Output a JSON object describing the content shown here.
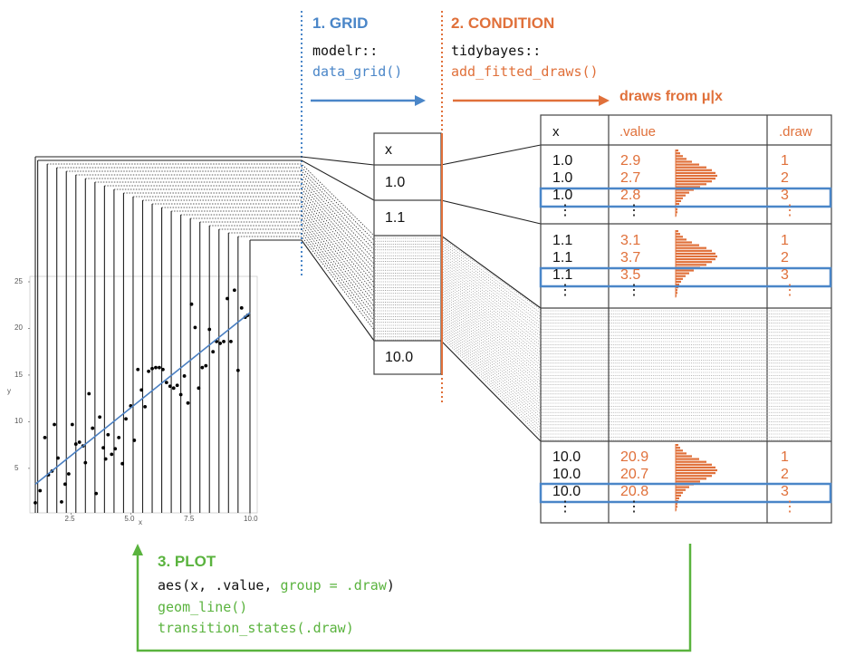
{
  "colors": {
    "grid_blue": "#4a86c8",
    "condition_orange": "#e0703a",
    "plot_green": "#5ab33e",
    "text_black": "#111111",
    "line_gray": "#444444"
  },
  "step1": {
    "title": "1. GRID",
    "pkg": "modelr::",
    "func": "data_grid()"
  },
  "step2": {
    "title": "2. CONDITION",
    "pkg": "tidybayes::",
    "func": "add_fitted_draws()",
    "note": "draws from μ|x"
  },
  "step3": {
    "title": "3. PLOT",
    "aes_prefix": "aes(x, .value, ",
    "aes_group": "group = .draw",
    "aes_suffix": ")",
    "line2": "geom_line()",
    "line3": "transition_states(.draw)"
  },
  "grid_table": {
    "header": "x",
    "values": [
      "1.0",
      "1.1",
      "10.0"
    ]
  },
  "draws_table": {
    "headers": {
      "x": "x",
      "value": ".value",
      "draw": ".draw"
    },
    "ellipsis": "⋮",
    "groups": [
      {
        "x": [
          "1.0",
          "1.0",
          "1.0"
        ],
        "value": [
          "2.9",
          "2.7",
          "2.8"
        ],
        "draw": [
          "1",
          "2",
          "3"
        ]
      },
      {
        "x": [
          "1.1",
          "1.1",
          "1.1"
        ],
        "value": [
          "3.1",
          "3.7",
          "3.5"
        ],
        "draw": [
          "1",
          "2",
          "3"
        ]
      },
      {
        "x": [
          "10.0",
          "10.0",
          "10.0"
        ],
        "value": [
          "20.9",
          "20.7",
          "20.8"
        ],
        "draw": [
          "1",
          "2",
          "3"
        ]
      }
    ]
  },
  "chart_data": {
    "type": "scatter",
    "title": "",
    "xlabel": "x",
    "ylabel": "y",
    "xlim": [
      1,
      10
    ],
    "ylim": [
      1,
      25
    ],
    "x_ticks": [
      "2.5",
      "5.0",
      "7.5",
      "10.0"
    ],
    "y_ticks": [
      "5",
      "10",
      "15",
      "20",
      "25"
    ],
    "points": [
      [
        1.0,
        1.3
      ],
      [
        1.2,
        2.6
      ],
      [
        1.4,
        8.3
      ],
      [
        1.55,
        4.3
      ],
      [
        1.7,
        4.7
      ],
      [
        1.8,
        9.7
      ],
      [
        1.95,
        6.1
      ],
      [
        2.1,
        1.4
      ],
      [
        2.25,
        3.3
      ],
      [
        2.4,
        4.4
      ],
      [
        2.55,
        9.7
      ],
      [
        2.7,
        7.6
      ],
      [
        2.85,
        7.8
      ],
      [
        3.0,
        7.4
      ],
      [
        3.1,
        5.6
      ],
      [
        3.25,
        13.0
      ],
      [
        3.4,
        9.3
      ],
      [
        3.55,
        2.3
      ],
      [
        3.7,
        10.5
      ],
      [
        3.85,
        7.2
      ],
      [
        3.95,
        6.0
      ],
      [
        4.05,
        8.6
      ],
      [
        4.2,
        6.5
      ],
      [
        4.35,
        7.1
      ],
      [
        4.5,
        8.3
      ],
      [
        4.65,
        5.5
      ],
      [
        4.8,
        10.3
      ],
      [
        5.0,
        11.7
      ],
      [
        5.15,
        8.0
      ],
      [
        5.3,
        15.6
      ],
      [
        5.45,
        13.4
      ],
      [
        5.6,
        11.6
      ],
      [
        5.75,
        15.4
      ],
      [
        5.9,
        15.7
      ],
      [
        6.05,
        15.8
      ],
      [
        6.2,
        15.8
      ],
      [
        6.35,
        15.6
      ],
      [
        6.5,
        14.2
      ],
      [
        6.65,
        13.8
      ],
      [
        6.8,
        13.6
      ],
      [
        6.95,
        13.9
      ],
      [
        7.1,
        12.9
      ],
      [
        7.25,
        14.9
      ],
      [
        7.4,
        12.0
      ],
      [
        7.55,
        22.6
      ],
      [
        7.7,
        20.1
      ],
      [
        7.85,
        13.6
      ],
      [
        8.0,
        15.8
      ],
      [
        8.15,
        16.0
      ],
      [
        8.3,
        19.9
      ],
      [
        8.45,
        17.5
      ],
      [
        8.6,
        18.6
      ],
      [
        8.75,
        18.4
      ],
      [
        8.9,
        18.6
      ],
      [
        9.05,
        23.2
      ],
      [
        9.2,
        18.6
      ],
      [
        9.35,
        24.1
      ],
      [
        9.5,
        15.5
      ],
      [
        9.65,
        22.2
      ],
      [
        9.8,
        21.2
      ],
      [
        9.9,
        21.4
      ]
    ],
    "fit_line": {
      "x": [
        1,
        10
      ],
      "y": [
        3.3,
        21.7
      ]
    },
    "vertical_lines_x": [
      1.0,
      1.1,
      1.5,
      1.9,
      2.3,
      2.7,
      3.1,
      3.5,
      3.9,
      4.3,
      4.7,
      5.1,
      5.5,
      5.9,
      6.3,
      6.7,
      7.1,
      7.5,
      7.9,
      8.3,
      8.7,
      9.1,
      9.5,
      10.0
    ]
  }
}
